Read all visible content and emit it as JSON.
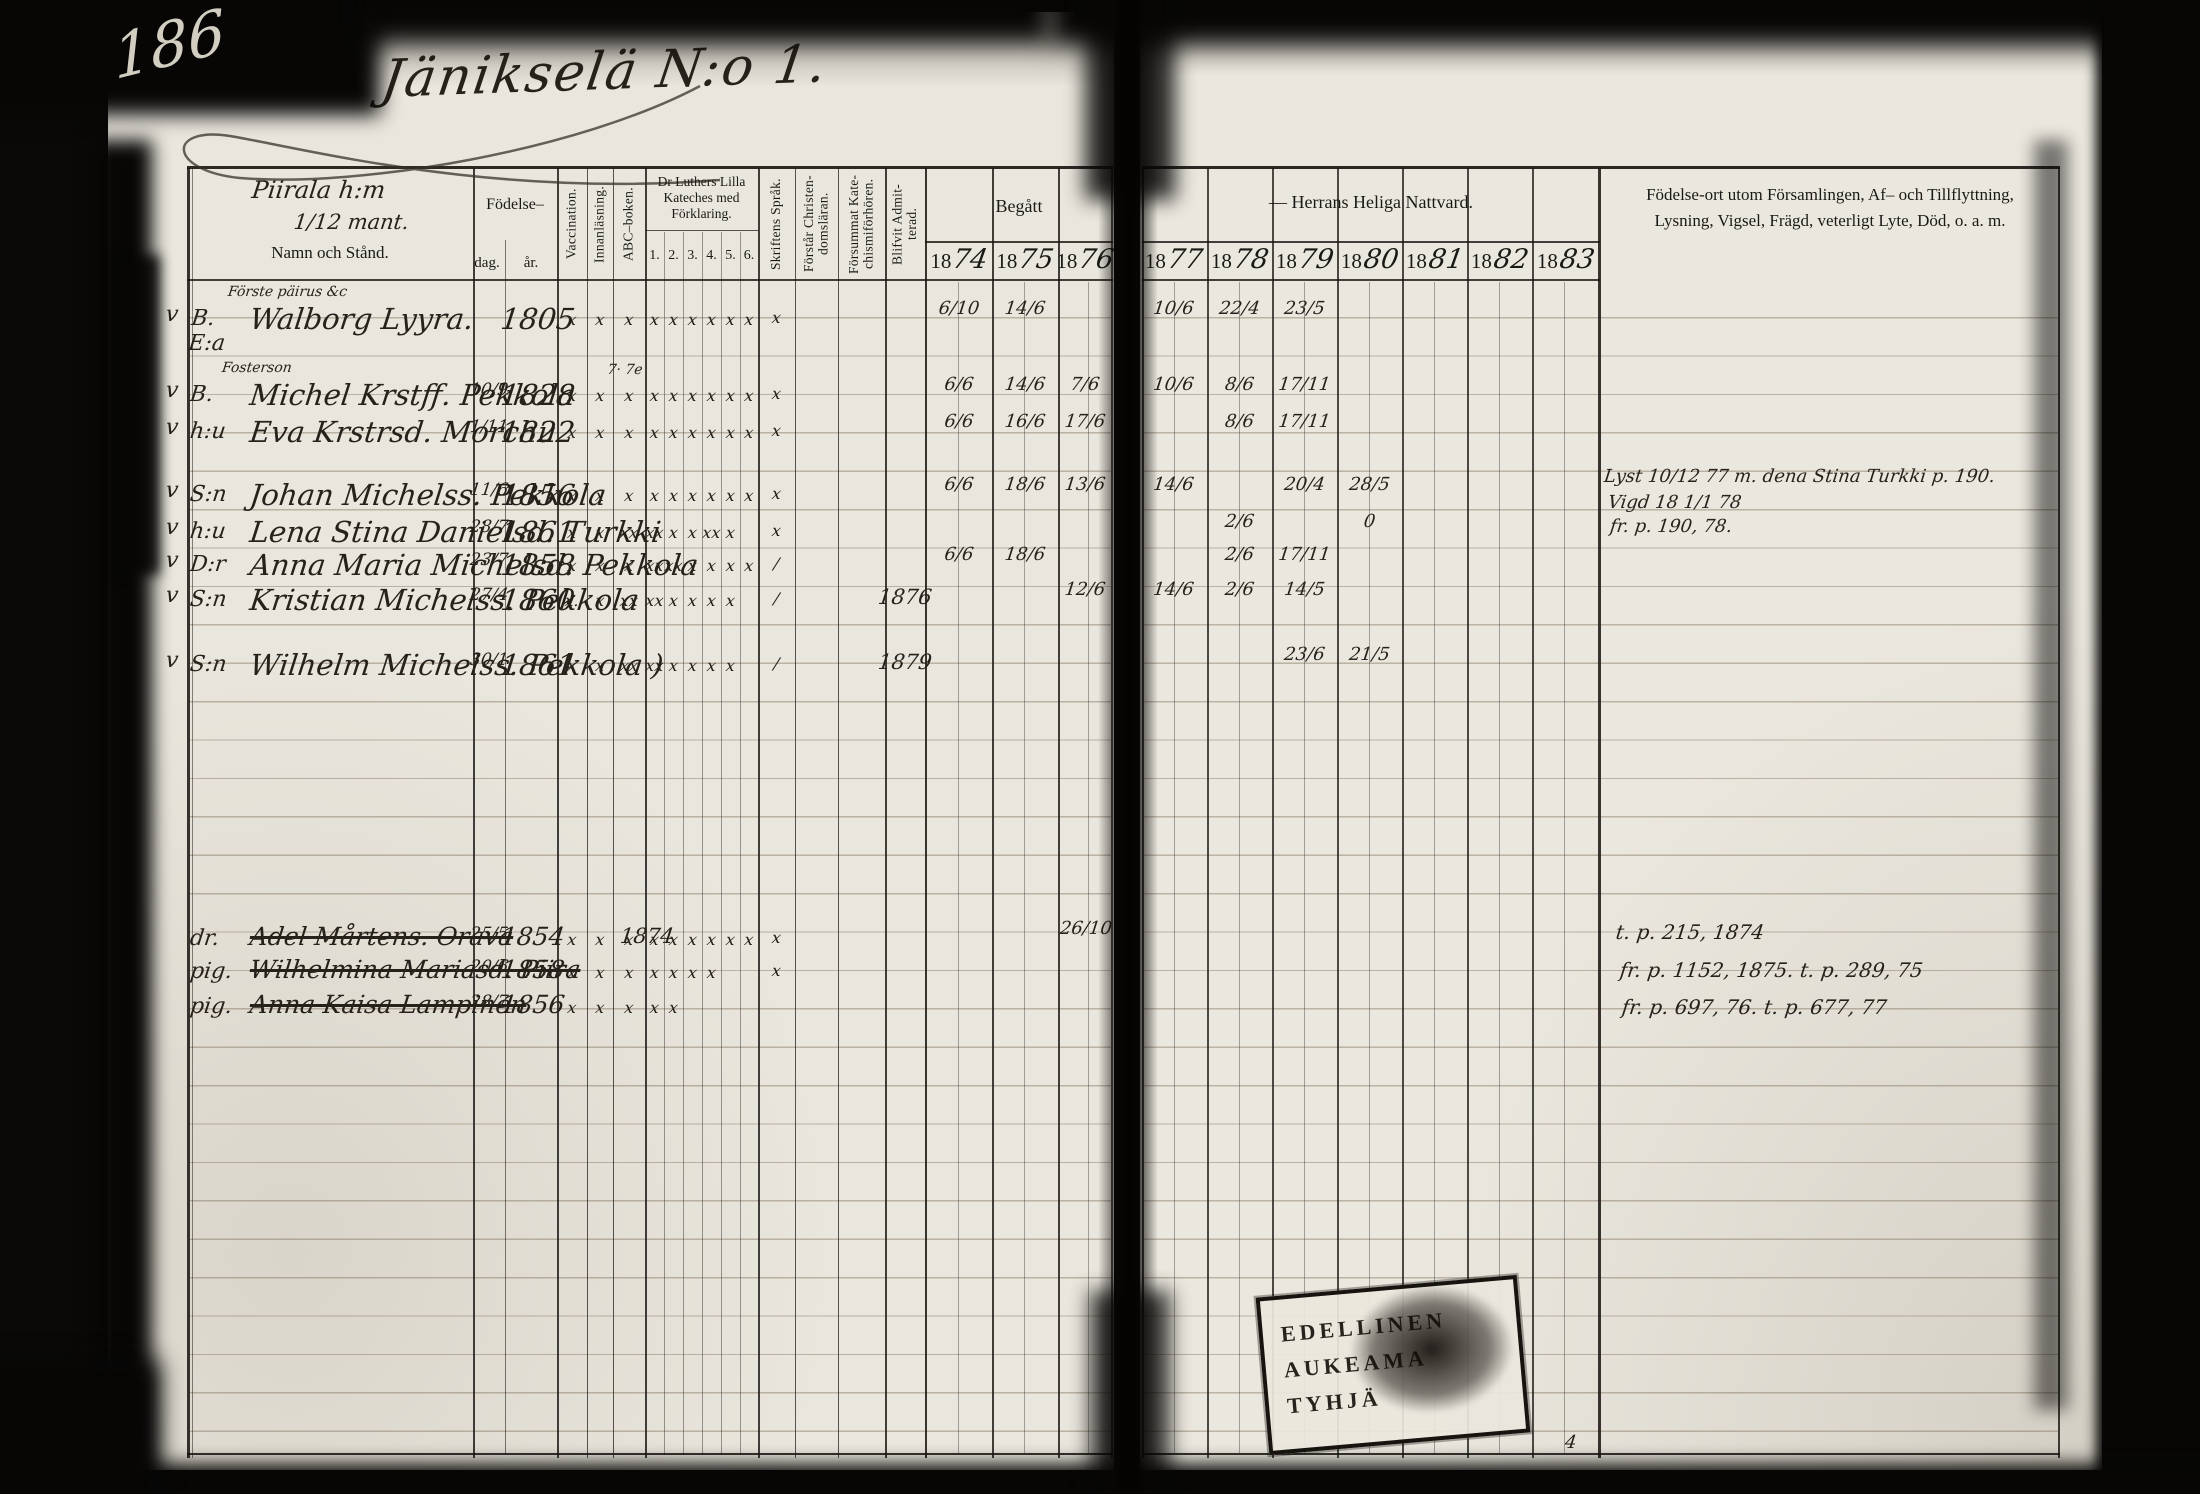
{
  "page_number": "186",
  "title": "Jänikselä  N:o 1.",
  "farm_note": {
    "line1": "Piirala h:m",
    "line2": "1/12 mant."
  },
  "row_notes": {
    "note1": "Förste päirus &c",
    "note2": "Fosterson"
  },
  "header": {
    "name_col": "Namn och Stånd.",
    "birth_label": "Födelse–",
    "birth_day": "dag.",
    "birth_year": "år.",
    "vaccination": "Vaccination.",
    "innanlasning": "Innanläsning.",
    "abc": "ABC–boken.",
    "katekes_label": "Dr Luthers Lilla Kateches med Förklaring.",
    "katekes_subs": [
      "1.",
      "2.",
      "3.",
      "4.",
      "5.",
      "6."
    ],
    "skriftens": "Skriftens Språk.",
    "forstar": "Förstår Christen- domsläran.",
    "forsummat": "Försummat Kate- chismiförhören.",
    "blifvit": "Blifvit Admit- terad.",
    "begatt": "Begått",
    "nattvard": "— Herrans Heliga Nattvard.",
    "fodelseort": "Födelse-ort utom Församlingen, Af– och Tillflyttning, Lysning, Vigsel, Frägd, veterligt Lyte, Död, o. a. m.",
    "years_printed": "18",
    "years_left": [
      "74",
      "75",
      "76"
    ],
    "years_right": [
      "77",
      "78",
      "79",
      "80",
      "81",
      "82",
      "83"
    ]
  },
  "rows": [
    {
      "check": "v",
      "prefix": "B. E:a",
      "name": "Walborg Lyyra.",
      "bday": "",
      "byear": "1805",
      "marks": [
        "x",
        "x",
        "x",
        "x",
        "x",
        "x",
        "x",
        "x",
        "x"
      ],
      "skrift": "x",
      "admit": "",
      "comm": {
        "1874": "6/10",
        "1875": "14/6",
        "1877": "10/6",
        "1878": "22/4",
        "1879": "23/5"
      }
    },
    {
      "check": "v",
      "prefix": "B.",
      "name": "Michel Krstff. Pekkola",
      "bday": "10/9",
      "byear": "1828",
      "marks": [
        "x",
        "x",
        "x",
        "x",
        "x",
        "x",
        "x",
        "x",
        "x"
      ],
      "skrift": "x",
      "admit": "",
      "extra": "7· 7e",
      "comm": {
        "1874": "6/6",
        "1875": "14/6",
        "1876": "7/6",
        "1877": "10/6",
        "1878": "8/6",
        "1879": "17/11"
      }
    },
    {
      "check": "v",
      "prefix": "h:u",
      "name": "Eva Krstrsd. Morchu",
      "bday": "1/11",
      "byear": "1822",
      "marks": [
        "x",
        "x",
        "x",
        "x",
        "x",
        "x",
        "x",
        "x",
        "x"
      ],
      "skrift": "x",
      "admit": "",
      "comm": {
        "1874": "6/6",
        "1875": "16/6",
        "1876": "17/6",
        "1878": "8/6",
        "1879": "17/11"
      }
    },
    {
      "check": "v",
      "prefix": "S:n",
      "name": "Johan Michelss. Pekkola",
      "bday": "11/6",
      "byear": "1856",
      "marks": [
        "x",
        "x",
        "x",
        "x",
        "x",
        "x",
        "x",
        "x",
        "x"
      ],
      "skrift": "x",
      "admit": "",
      "comm": {
        "1874": "6/6",
        "1875": "18/6",
        "1876": "13/6",
        "1877": "14/6",
        "1879": "20/4",
        "1880": "28/5"
      }
    },
    {
      "check": "v",
      "prefix": "h:u",
      "name": "Lena Stina Danielsd. Turkki",
      "bday": "28/7",
      "byear": "1861",
      "marks": [
        "x",
        "x",
        "xx",
        "xx",
        "x",
        "x",
        "xx",
        "x",
        ""
      ],
      "skrift": "x",
      "admit": "",
      "comm": {
        "1878": "2/6",
        "1880": "0"
      }
    },
    {
      "check": "v",
      "prefix": "D:r",
      "name": "Anna Maria Michelsd. Pekkola",
      "bday": "23/7",
      "byear": "1858",
      "marks": [
        "x",
        "x",
        "x",
        "xx",
        "xx",
        "x",
        "x",
        "x",
        "x"
      ],
      "skrift": "/",
      "admit": "",
      "comm": {
        "1874": "6/6",
        "1875": "18/6",
        "1878": "2/6",
        "1879": "17/11"
      }
    },
    {
      "check": "v",
      "prefix": "S:n",
      "name": "Kristian Michelss. Pekkola",
      "bday": "27/4",
      "byear": "1860",
      "marks": [
        "x.",
        "x",
        "xx",
        "xx",
        "x",
        "x",
        "x",
        "x",
        ""
      ],
      "skrift": "/",
      "admit": "1876",
      "comm": {
        "1876": "12/6",
        "1877": "14/6",
        "1878": "2/6",
        "1879": "14/5"
      }
    },
    {
      "check": "v",
      "prefix": "S:n",
      "name": "Wilhelm Michelss. Pekkola )",
      "bday": "30/1",
      "byear": "1861",
      "marks": [
        "x",
        "x",
        "xx",
        "xx",
        "x",
        "x",
        "x",
        "x",
        ""
      ],
      "skrift": "/",
      "admit": "1879",
      "comm": {
        "1879": "23/6",
        "1880": "21/5"
      }
    },
    {
      "check": "",
      "prefix": "dr.",
      "name": "Adel Mårtens. Orava",
      "bday": "25/5",
      "byear": "1854",
      "marks": [
        "x",
        "x",
        "x",
        "x",
        "x",
        "x",
        "x",
        "x",
        "x"
      ],
      "skrift": "x",
      "admit": "1874",
      "comm": {
        "1876": "26/10"
      },
      "struck": true
    },
    {
      "check": "",
      "prefix": "pig.",
      "name": "Wilhelmina Mariasd. Piira",
      "bday": "20/6",
      "byear": "1858",
      "marks": [
        "x",
        "x",
        "x",
        "x",
        "x",
        "x",
        "x",
        "",
        ""
      ],
      "skrift": "x",
      "admit": "",
      "comm": {},
      "struck": true
    },
    {
      "check": "",
      "prefix": "pig.",
      "name": "Anna Kaisa Lampinen",
      "bday": "28/7",
      "byear": "1856",
      "marks": [
        "x",
        "x",
        "x",
        "x",
        "x",
        "",
        "",
        "",
        ""
      ],
      "skrift": "",
      "admit": "",
      "comm": {},
      "struck": true
    }
  ],
  "notes_right_a": [
    "Lyst 10/12 77 m. dena Stina Turkki p. 190.",
    "Vigd 18 1/1 78",
    "fr. p. 190, 78."
  ],
  "notes_right_b": [
    "t. p. 215, 1874",
    "fr. p. 1152, 1875.   t. p. 289, 75",
    "fr. p. 697, 76.   t. p. 677, 77"
  ],
  "stamp": [
    "EDELLINEN",
    "AUKEAMA",
    "TYHJÄ"
  ],
  "foot_mark": "4"
}
